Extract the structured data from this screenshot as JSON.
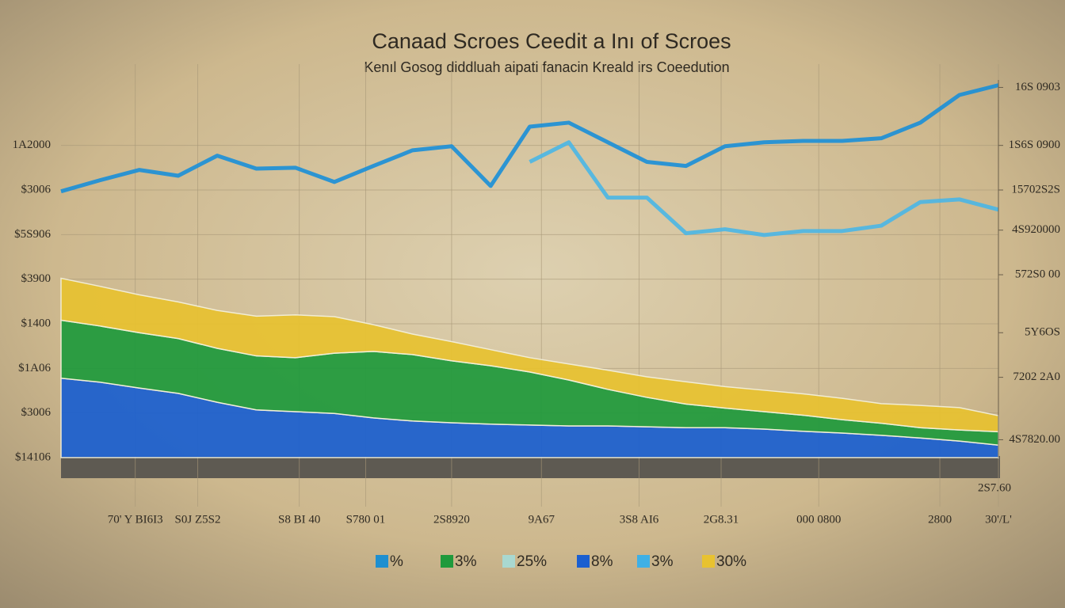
{
  "chart_data": {
    "type": "stacked-area-line",
    "title": "Canaad Scroes Ceedit a Inı of Scroes",
    "subtitle": "Kenıl Gosog diddluah aipati fanacin Kreald irs Coeedution",
    "x": [
      0,
      1,
      2,
      3,
      4,
      5,
      6,
      7,
      8,
      9,
      10,
      11,
      12,
      13,
      14,
      15,
      16,
      17,
      18,
      19,
      20,
      21,
      22,
      23,
      24
    ],
    "xlim": [
      0,
      24
    ],
    "xticks": [
      {
        "value": 1.9,
        "label": "70' Y BI6I3"
      },
      {
        "value": 3.5,
        "label": "S0J Z5S2"
      },
      {
        "value": 6.1,
        "label": "S8 BI 40"
      },
      {
        "value": 7.8,
        "label": "S780 01"
      },
      {
        "value": 10,
        "label": "2S8920"
      },
      {
        "value": 12.3,
        "label": "9A67"
      },
      {
        "value": 14.8,
        "label": "3S8 AI6"
      },
      {
        "value": 16.9,
        "label": "2G8.31"
      },
      {
        "value": 19.4,
        "label": "000 0800"
      },
      {
        "value": 22.5,
        "label": "2800"
      },
      {
        "value": 24,
        "label": "30'/L'"
      }
    ],
    "ylim": [
      0,
      9
    ],
    "yticks": [
      {
        "value": 0,
        "label": "$14106"
      },
      {
        "value": 1,
        "label": "$3006"
      },
      {
        "value": 2,
        "label": "$1A06"
      },
      {
        "value": 3,
        "label": "$1400"
      },
      {
        "value": 4,
        "label": "$3900"
      },
      {
        "value": 5,
        "label": "$5S906"
      },
      {
        "value": 6,
        "label": "$3006"
      },
      {
        "value": 7,
        "label": "1A2000"
      }
    ],
    "y2lim": [
      0,
      9
    ],
    "y2ticks": [
      {
        "value": 0.4,
        "label": "4S7820.00"
      },
      {
        "value": 1.8,
        "label": "7202 2A0"
      },
      {
        "value": 2.8,
        "label": "5Y6OS"
      },
      {
        "value": 4.1,
        "label": "572S0 00"
      },
      {
        "value": 5.1,
        "label": "4S920000"
      },
      {
        "value": 6,
        "label": "15702S2S"
      },
      {
        "value": 7,
        "label": "1S6S 0900"
      },
      {
        "value": 8.3,
        "label": "16S 0903"
      }
    ],
    "annotation": "2S7.60",
    "grid": true,
    "series": [
      {
        "kind": "area",
        "color": "#1a5fd0",
        "values": [
          1.78,
          1.69,
          1.56,
          1.44,
          1.24,
          1.07,
          1.03,
          0.99,
          0.89,
          0.82,
          0.78,
          0.75,
          0.73,
          0.71,
          0.71,
          0.69,
          0.67,
          0.67,
          0.64,
          0.59,
          0.55,
          0.5,
          0.44,
          0.37,
          0.28
        ]
      },
      {
        "kind": "area",
        "color": "#1f9a3c",
        "values": [
          1.3,
          1.26,
          1.24,
          1.23,
          1.21,
          1.21,
          1.21,
          1.35,
          1.49,
          1.49,
          1.39,
          1.31,
          1.19,
          1.03,
          0.82,
          0.66,
          0.53,
          0.44,
          0.39,
          0.36,
          0.3,
          0.27,
          0.23,
          0.25,
          0.3
        ]
      },
      {
        "kind": "area",
        "color": "#e8c230",
        "values": [
          0.94,
          0.89,
          0.85,
          0.82,
          0.85,
          0.89,
          0.96,
          0.82,
          0.6,
          0.46,
          0.43,
          0.36,
          0.32,
          0.36,
          0.43,
          0.46,
          0.5,
          0.48,
          0.48,
          0.48,
          0.48,
          0.44,
          0.5,
          0.5,
          0.36
        ]
      },
      {
        "kind": "line",
        "color": "#1a8fd8",
        "values": [
          5.97,
          6.22,
          6.45,
          6.32,
          6.77,
          6.48,
          6.5,
          6.18,
          6.54,
          6.89,
          6.98,
          6.09,
          7.42,
          7.51,
          7.07,
          6.63,
          6.54,
          6.98,
          7.07,
          7.1,
          7.1,
          7.16,
          7.51,
          8.13,
          8.35
        ]
      },
      {
        "kind": "line",
        "color": "#4ab6e6",
        "values": [
          null,
          null,
          null,
          null,
          null,
          null,
          null,
          null,
          null,
          null,
          null,
          null,
          6.63,
          7.07,
          5.83,
          5.83,
          5.03,
          5.12,
          4.99,
          5.08,
          5.08,
          5.2,
          5.73,
          5.79,
          5.56
        ]
      }
    ],
    "legend": [
      {
        "label": "%",
        "color": "#1e8fd0"
      },
      {
        "label": "3%",
        "color": "#1f9a3c"
      },
      {
        "label": "25%",
        "color": "#a9d8d0"
      },
      {
        "label": "8%",
        "color": "#1a5fd0"
      },
      {
        "label": "3%",
        "color": "#3fb0e6"
      },
      {
        "label": "30%",
        "color": "#e8c230"
      }
    ]
  }
}
